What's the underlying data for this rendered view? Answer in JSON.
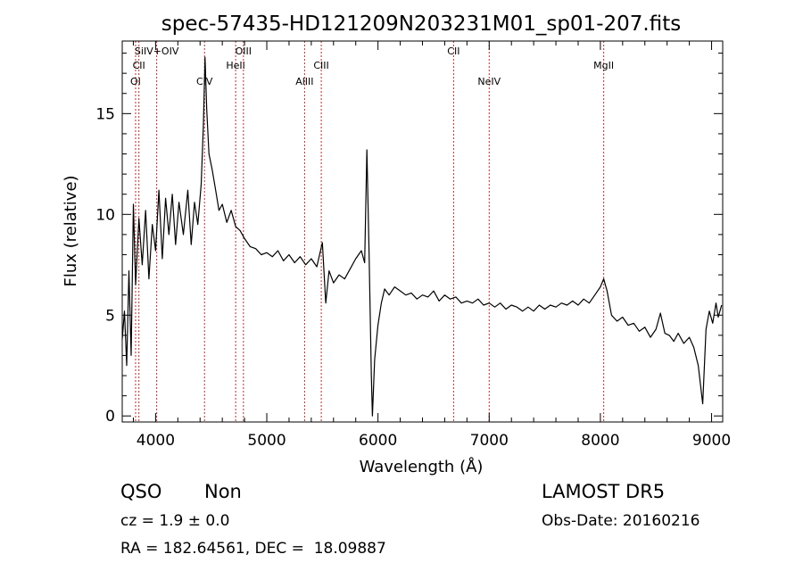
{
  "chart_data": {
    "type": "line",
    "title": "spec-57435-HD121209N203231M01_sp01-207.fits",
    "xlabel": "Wavelength (Å)",
    "ylabel": "Flux (relative)",
    "xlim": [
      3700,
      9100
    ],
    "ylim": [
      -0.3,
      18.6
    ],
    "xticks": [
      {
        "value": 4000,
        "label": "4000"
      },
      {
        "value": 5000,
        "label": "5000"
      },
      {
        "value": 6000,
        "label": "6000"
      },
      {
        "value": 7000,
        "label": "7000"
      },
      {
        "value": 8000,
        "label": "8000"
      },
      {
        "value": 9000,
        "label": "9000"
      }
    ],
    "yticks": [
      {
        "value": 0,
        "label": "0"
      },
      {
        "value": 5,
        "label": "5"
      },
      {
        "value": 10,
        "label": "10"
      },
      {
        "value": 15,
        "label": "15"
      }
    ],
    "grid": false,
    "lines": [
      {
        "name": "OI",
        "wavelength": 3820,
        "row": 3
      },
      {
        "name": "CII",
        "wavelength": 3850,
        "row": 2
      },
      {
        "name": "SiIV+OIV",
        "wavelength": 4010,
        "row": 1
      },
      {
        "name": "CIV",
        "wavelength": 4440,
        "row": 3
      },
      {
        "name": "HeII",
        "wavelength": 4720,
        "row": 2
      },
      {
        "name": "OIII",
        "wavelength": 4790,
        "row": 1
      },
      {
        "name": "AlIII",
        "wavelength": 5340,
        "row": 3
      },
      {
        "name": "CIII",
        "wavelength": 5490,
        "row": 2
      },
      {
        "name": "CII",
        "wavelength": 6680,
        "row": 1
      },
      {
        "name": "NeIV",
        "wavelength": 7000,
        "row": 3
      },
      {
        "name": "MgII",
        "wavelength": 8030,
        "row": 2
      }
    ],
    "series": [
      {
        "points": [
          [
            3700,
            3.8
          ],
          [
            3720,
            5.2
          ],
          [
            3740,
            2.5
          ],
          [
            3760,
            7.2
          ],
          [
            3780,
            3.0
          ],
          [
            3800,
            10.5
          ],
          [
            3820,
            6.5
          ],
          [
            3850,
            9.8
          ],
          [
            3880,
            7.5
          ],
          [
            3910,
            10.2
          ],
          [
            3940,
            6.8
          ],
          [
            3970,
            9.5
          ],
          [
            4000,
            8.2
          ],
          [
            4030,
            11.2
          ],
          [
            4060,
            7.8
          ],
          [
            4090,
            10.8
          ],
          [
            4120,
            9.0
          ],
          [
            4150,
            11.0
          ],
          [
            4180,
            8.5
          ],
          [
            4210,
            10.6
          ],
          [
            4250,
            9.0
          ],
          [
            4290,
            11.2
          ],
          [
            4320,
            8.5
          ],
          [
            4350,
            10.6
          ],
          [
            4380,
            9.5
          ],
          [
            4410,
            11.5
          ],
          [
            4430,
            14.5
          ],
          [
            4445,
            17.8
          ],
          [
            4460,
            15.2
          ],
          [
            4480,
            13.0
          ],
          [
            4510,
            12.2
          ],
          [
            4540,
            11.2
          ],
          [
            4570,
            10.2
          ],
          [
            4600,
            10.5
          ],
          [
            4640,
            9.6
          ],
          [
            4680,
            10.2
          ],
          [
            4720,
            9.4
          ],
          [
            4760,
            9.2
          ],
          [
            4800,
            8.8
          ],
          [
            4850,
            8.4
          ],
          [
            4900,
            8.3
          ],
          [
            4950,
            8.0
          ],
          [
            5000,
            8.1
          ],
          [
            5050,
            7.9
          ],
          [
            5100,
            8.2
          ],
          [
            5150,
            7.7
          ],
          [
            5200,
            8.0
          ],
          [
            5250,
            7.6
          ],
          [
            5300,
            7.9
          ],
          [
            5350,
            7.5
          ],
          [
            5400,
            7.8
          ],
          [
            5450,
            7.4
          ],
          [
            5500,
            8.6
          ],
          [
            5530,
            5.6
          ],
          [
            5560,
            7.2
          ],
          [
            5600,
            6.6
          ],
          [
            5650,
            7.0
          ],
          [
            5700,
            6.8
          ],
          [
            5750,
            7.3
          ],
          [
            5800,
            7.8
          ],
          [
            5850,
            8.2
          ],
          [
            5880,
            7.6
          ],
          [
            5900,
            13.2
          ],
          [
            5920,
            8.0
          ],
          [
            5940,
            2.0
          ],
          [
            5950,
            0.0
          ],
          [
            5970,
            2.8
          ],
          [
            6000,
            4.5
          ],
          [
            6030,
            5.6
          ],
          [
            6060,
            6.3
          ],
          [
            6100,
            6.0
          ],
          [
            6150,
            6.4
          ],
          [
            6200,
            6.2
          ],
          [
            6250,
            6.0
          ],
          [
            6300,
            6.1
          ],
          [
            6350,
            5.8
          ],
          [
            6400,
            6.0
          ],
          [
            6450,
            5.9
          ],
          [
            6500,
            6.2
          ],
          [
            6550,
            5.7
          ],
          [
            6600,
            6.0
          ],
          [
            6650,
            5.8
          ],
          [
            6700,
            5.9
          ],
          [
            6750,
            5.6
          ],
          [
            6800,
            5.7
          ],
          [
            6850,
            5.6
          ],
          [
            6900,
            5.8
          ],
          [
            6950,
            5.5
          ],
          [
            7000,
            5.6
          ],
          [
            7050,
            5.4
          ],
          [
            7100,
            5.6
          ],
          [
            7150,
            5.3
          ],
          [
            7200,
            5.5
          ],
          [
            7250,
            5.4
          ],
          [
            7300,
            5.2
          ],
          [
            7350,
            5.4
          ],
          [
            7400,
            5.2
          ],
          [
            7450,
            5.5
          ],
          [
            7500,
            5.3
          ],
          [
            7550,
            5.5
          ],
          [
            7600,
            5.4
          ],
          [
            7650,
            5.6
          ],
          [
            7700,
            5.5
          ],
          [
            7750,
            5.7
          ],
          [
            7800,
            5.5
          ],
          [
            7850,
            5.8
          ],
          [
            7900,
            5.6
          ],
          [
            7950,
            6.0
          ],
          [
            8000,
            6.4
          ],
          [
            8030,
            6.8
          ],
          [
            8060,
            6.2
          ],
          [
            8100,
            5.0
          ],
          [
            8150,
            4.7
          ],
          [
            8200,
            4.9
          ],
          [
            8250,
            4.5
          ],
          [
            8300,
            4.6
          ],
          [
            8350,
            4.2
          ],
          [
            8400,
            4.4
          ],
          [
            8450,
            3.9
          ],
          [
            8500,
            4.3
          ],
          [
            8540,
            5.1
          ],
          [
            8580,
            4.1
          ],
          [
            8620,
            4.0
          ],
          [
            8660,
            3.7
          ],
          [
            8700,
            4.1
          ],
          [
            8750,
            3.6
          ],
          [
            8800,
            3.9
          ],
          [
            8840,
            3.4
          ],
          [
            8880,
            2.5
          ],
          [
            8920,
            0.6
          ],
          [
            8950,
            4.3
          ],
          [
            8980,
            5.2
          ],
          [
            9010,
            4.6
          ],
          [
            9040,
            5.6
          ],
          [
            9060,
            4.9
          ],
          [
            9090,
            5.5
          ]
        ]
      }
    ]
  },
  "info": {
    "class_label": "QSO",
    "subclass_label": "Non",
    "survey_label": "LAMOST DR5",
    "cz_text": "cz = 1.9 ± 0.0",
    "obs_date_text": "Obs-Date: 20160216",
    "coords_text": "RA = 182.64561, DEC =  18.09887"
  }
}
